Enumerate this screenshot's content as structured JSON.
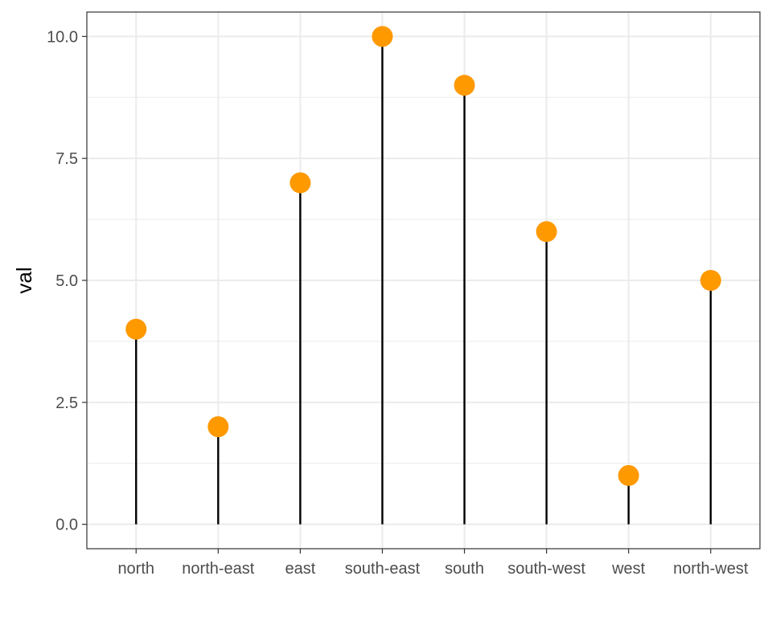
{
  "chart_data": {
    "type": "lollipop",
    "categories": [
      "north",
      "north-east",
      "east",
      "south-east",
      "south",
      "south-west",
      "west",
      "north-west"
    ],
    "values": [
      4,
      2,
      7,
      10,
      9,
      6,
      1,
      5
    ],
    "xlabel": "",
    "ylabel": "val",
    "ylim": [
      -0.5,
      10.5
    ],
    "yticks": [
      "0.0",
      "2.5",
      "5.0",
      "7.5",
      "10.0"
    ],
    "grid": true,
    "colors": {
      "point": "#ff9900",
      "stem": "#000000",
      "grid": "#ebebeb",
      "border": "#333333"
    }
  }
}
